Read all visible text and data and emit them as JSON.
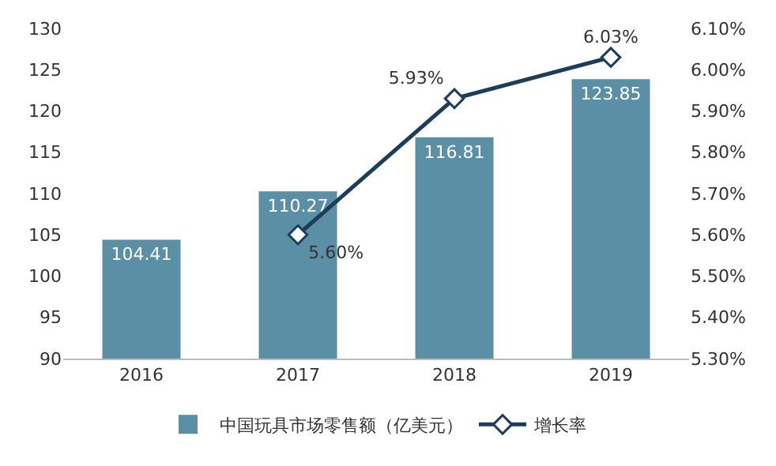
{
  "chart_data": {
    "type": "bar",
    "categories": [
      "2016",
      "2017",
      "2018",
      "2019"
    ],
    "series": [
      {
        "name": "中国玩具市场零售额（亿美元）",
        "color": "#5b8fa6",
        "values": [
          104.41,
          110.27,
          116.81,
          123.85
        ],
        "value_labels": [
          "104.41",
          "110.27",
          "116.81",
          "123.85"
        ]
      },
      {
        "name": "增长率",
        "type": "line",
        "axis": "y2",
        "color": "#1d3d5c",
        "marker": "diamond",
        "values": [
          null,
          5.6,
          5.93,
          6.03
        ],
        "value_labels": [
          null,
          "5.60%",
          "5.93%",
          "6.03%"
        ]
      }
    ],
    "ylim": [
      90,
      130
    ],
    "yticks": [
      90,
      95,
      100,
      105,
      110,
      115,
      120,
      125,
      130
    ],
    "y2lim": [
      5.3,
      6.1
    ],
    "y2ticks": [
      {
        "value": 5.3,
        "label": "5.30%"
      },
      {
        "value": 5.4,
        "label": "5.40%"
      },
      {
        "value": 5.5,
        "label": "5.50%"
      },
      {
        "value": 5.6,
        "label": "5.60%"
      },
      {
        "value": 5.7,
        "label": "5.70%"
      },
      {
        "value": 5.8,
        "label": "5.80%"
      },
      {
        "value": 5.9,
        "label": "5.90%"
      },
      {
        "value": 6.0,
        "label": "6.00%"
      },
      {
        "value": 6.1,
        "label": "6.10%"
      }
    ],
    "grid": false,
    "legend": "bottom"
  }
}
